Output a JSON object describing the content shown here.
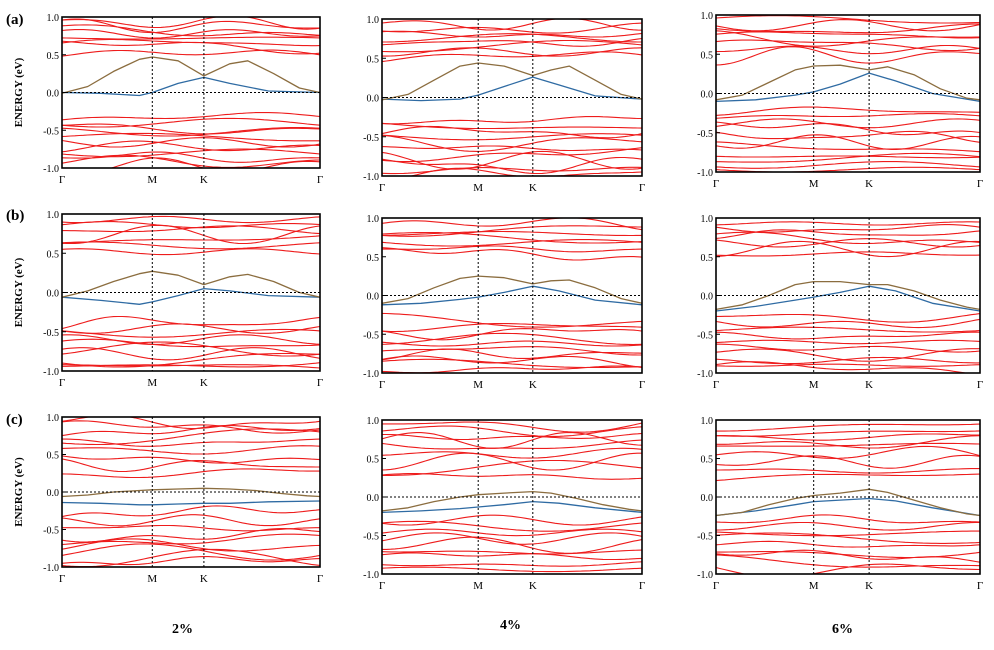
{
  "figure": {
    "row_labels": [
      "(a)",
      "(b)",
      "(c)"
    ],
    "column_labels": [
      "2%",
      "4%",
      "6%"
    ],
    "ylabel": "ENERGY (eV)",
    "yticks": [
      "1.0",
      "0.5",
      "0.0",
      "-0.5",
      "-1.0"
    ],
    "kpoints": [
      "Γ",
      "M",
      "K",
      "Γ"
    ],
    "colors": {
      "bands": "#ee1c1c",
      "upper_highlight": "#8b6d3f",
      "lower_highlight": "#2f6ba3",
      "frame": "#000000"
    }
  },
  "chart_data": [
    {
      "type": "line",
      "panel": "a-2%",
      "ylabel": "ENERGY (eV)",
      "ylim": [
        -1.0,
        1.0
      ],
      "kpoints": [
        "Γ",
        "M",
        "K",
        "Γ"
      ],
      "kpath": [
        0,
        0.35,
        0.55,
        1.0
      ],
      "highlight_upper": {
        "x": [
          0,
          0.1,
          0.2,
          0.3,
          0.35,
          0.45,
          0.55,
          0.65,
          0.72,
          0.82,
          0.92,
          1.0
        ],
        "y": [
          -0.01,
          0.08,
          0.28,
          0.44,
          0.47,
          0.42,
          0.22,
          0.38,
          0.42,
          0.25,
          0.06,
          0.0
        ]
      },
      "highlight_lower": {
        "x": [
          0,
          0.15,
          0.3,
          0.35,
          0.45,
          0.55,
          0.65,
          0.8,
          1.0
        ],
        "y": [
          0.0,
          -0.01,
          -0.04,
          0.0,
          0.12,
          0.2,
          0.12,
          0.02,
          0.0
        ]
      },
      "band_levels": [
        0.93,
        0.88,
        0.82,
        0.78,
        0.72,
        0.66,
        0.6,
        0.52,
        -0.34,
        -0.4,
        -0.46,
        -0.52,
        -0.6,
        -0.66,
        -0.72,
        -0.8,
        -0.86,
        -0.92,
        -0.97
      ]
    },
    {
      "type": "line",
      "panel": "a-4%",
      "ylabel": "ENERGY (eV)",
      "ylim": [
        -1.0,
        1.0
      ],
      "kpoints": [
        "Γ",
        "M",
        "K",
        "Γ"
      ],
      "kpath": [
        0,
        0.37,
        0.58,
        1.0
      ],
      "highlight_upper": {
        "x": [
          0,
          0.1,
          0.2,
          0.3,
          0.37,
          0.47,
          0.58,
          0.65,
          0.72,
          0.82,
          0.92,
          1.0
        ],
        "y": [
          -0.03,
          0.04,
          0.22,
          0.4,
          0.44,
          0.4,
          0.28,
          0.35,
          0.4,
          0.22,
          0.04,
          -0.02
        ]
      },
      "highlight_lower": {
        "x": [
          0,
          0.15,
          0.3,
          0.37,
          0.47,
          0.58,
          0.68,
          0.82,
          1.0
        ],
        "y": [
          -0.02,
          -0.04,
          -0.02,
          0.03,
          0.14,
          0.26,
          0.16,
          0.02,
          -0.02
        ]
      },
      "band_levels": [
        0.93,
        0.87,
        0.82,
        0.76,
        0.7,
        0.64,
        0.58,
        0.5,
        -0.28,
        -0.36,
        -0.44,
        -0.5,
        -0.58,
        -0.66,
        -0.72,
        -0.8,
        -0.86,
        -0.92,
        -0.97
      ]
    },
    {
      "type": "line",
      "panel": "a-6%",
      "ylabel": "ENERGY (eV)",
      "ylim": [
        -1.0,
        1.0
      ],
      "kpoints": [
        "Γ",
        "M",
        "K",
        "Γ"
      ],
      "kpath": [
        0,
        0.37,
        0.58,
        1.0
      ],
      "highlight_upper": {
        "x": [
          0,
          0.1,
          0.2,
          0.3,
          0.37,
          0.47,
          0.58,
          0.65,
          0.75,
          0.85,
          0.95,
          1.0
        ],
        "y": [
          -0.08,
          -0.02,
          0.14,
          0.3,
          0.35,
          0.36,
          0.3,
          0.34,
          0.24,
          0.06,
          -0.06,
          -0.08
        ]
      },
      "highlight_lower": {
        "x": [
          0,
          0.15,
          0.3,
          0.37,
          0.47,
          0.58,
          0.68,
          0.82,
          1.0
        ],
        "y": [
          -0.1,
          -0.08,
          -0.02,
          0.02,
          0.12,
          0.26,
          0.16,
          0.0,
          -0.1
        ]
      },
      "band_levels": [
        0.93,
        0.87,
        0.81,
        0.75,
        0.69,
        0.63,
        0.56,
        0.48,
        -0.22,
        -0.3,
        -0.38,
        -0.46,
        -0.54,
        -0.62,
        -0.7,
        -0.78,
        -0.85,
        -0.91,
        -0.97
      ]
    },
    {
      "type": "line",
      "panel": "b-2%",
      "ylabel": "ENERGY (eV)",
      "ylim": [
        -1.0,
        1.0
      ],
      "kpoints": [
        "Γ",
        "M",
        "K",
        "Γ"
      ],
      "kpath": [
        0,
        0.35,
        0.55,
        1.0
      ],
      "highlight_upper": {
        "x": [
          0,
          0.1,
          0.2,
          0.3,
          0.35,
          0.45,
          0.55,
          0.65,
          0.72,
          0.82,
          0.92,
          1.0
        ],
        "y": [
          -0.06,
          0.02,
          0.14,
          0.24,
          0.27,
          0.22,
          0.1,
          0.2,
          0.23,
          0.14,
          0.0,
          -0.06
        ]
      },
      "highlight_lower": {
        "x": [
          0,
          0.15,
          0.3,
          0.35,
          0.45,
          0.55,
          0.65,
          0.8,
          1.0
        ],
        "y": [
          -0.06,
          -0.1,
          -0.15,
          -0.12,
          -0.04,
          0.05,
          0.02,
          -0.04,
          -0.06
        ]
      },
      "band_levels": [
        0.93,
        0.86,
        0.8,
        0.74,
        0.68,
        0.6,
        0.52,
        -0.38,
        -0.46,
        -0.52,
        -0.6,
        -0.66,
        -0.72,
        -0.78,
        -0.84,
        -0.9,
        -0.95
      ]
    },
    {
      "type": "line",
      "panel": "b-4%",
      "ylabel": "ENERGY (eV)",
      "ylim": [
        -1.0,
        1.0
      ],
      "kpoints": [
        "Γ",
        "M",
        "K",
        "Γ"
      ],
      "kpath": [
        0,
        0.37,
        0.58,
        1.0
      ],
      "highlight_upper": {
        "x": [
          0,
          0.1,
          0.2,
          0.3,
          0.37,
          0.47,
          0.58,
          0.65,
          0.72,
          0.82,
          0.92,
          1.0
        ],
        "y": [
          -0.1,
          -0.04,
          0.1,
          0.22,
          0.25,
          0.23,
          0.15,
          0.19,
          0.2,
          0.1,
          -0.04,
          -0.1
        ]
      },
      "highlight_lower": {
        "x": [
          0,
          0.15,
          0.3,
          0.37,
          0.47,
          0.58,
          0.68,
          0.82,
          1.0
        ],
        "y": [
          -0.12,
          -0.1,
          -0.05,
          -0.02,
          0.04,
          0.12,
          0.06,
          -0.06,
          -0.12
        ]
      },
      "band_levels": [
        0.93,
        0.86,
        0.8,
        0.74,
        0.68,
        0.6,
        0.52,
        -0.32,
        -0.4,
        -0.48,
        -0.56,
        -0.62,
        -0.7,
        -0.76,
        -0.84,
        -0.9,
        -0.96
      ]
    },
    {
      "type": "line",
      "panel": "b-6%",
      "ylabel": "ENERGY (eV)",
      "ylim": [
        -1.0,
        1.0
      ],
      "kpoints": [
        "Γ",
        "M",
        "K",
        "Γ"
      ],
      "kpath": [
        0,
        0.37,
        0.58,
        1.0
      ],
      "highlight_upper": {
        "x": [
          0,
          0.1,
          0.2,
          0.3,
          0.37,
          0.47,
          0.58,
          0.65,
          0.75,
          0.85,
          0.95,
          1.0
        ],
        "y": [
          -0.18,
          -0.12,
          0.0,
          0.14,
          0.18,
          0.18,
          0.14,
          0.14,
          0.06,
          -0.06,
          -0.15,
          -0.18
        ]
      },
      "highlight_lower": {
        "x": [
          0,
          0.15,
          0.3,
          0.37,
          0.47,
          0.58,
          0.68,
          0.82,
          1.0
        ],
        "y": [
          -0.2,
          -0.14,
          -0.06,
          -0.02,
          0.04,
          0.12,
          0.06,
          -0.1,
          -0.2
        ]
      },
      "band_levels": [
        0.93,
        0.86,
        0.8,
        0.74,
        0.68,
        0.6,
        0.52,
        -0.28,
        -0.36,
        -0.44,
        -0.52,
        -0.6,
        -0.68,
        -0.76,
        -0.84,
        -0.9,
        -0.96
      ]
    },
    {
      "type": "line",
      "panel": "c-2%",
      "ylabel": "ENERGY (eV)",
      "ylim": [
        -1.0,
        1.0
      ],
      "kpoints": [
        "Γ",
        "M",
        "K",
        "Γ"
      ],
      "kpath": [
        0,
        0.35,
        0.55,
        1.0
      ],
      "highlight_upper": {
        "x": [
          0,
          0.1,
          0.2,
          0.3,
          0.35,
          0.45,
          0.55,
          0.65,
          0.75,
          0.85,
          0.95,
          1.0
        ],
        "y": [
          -0.06,
          -0.04,
          0.0,
          0.02,
          0.03,
          0.04,
          0.05,
          0.04,
          0.02,
          -0.02,
          -0.05,
          -0.06
        ]
      },
      "highlight_lower": {
        "x": [
          0,
          0.15,
          0.3,
          0.35,
          0.45,
          0.55,
          0.65,
          0.8,
          1.0
        ],
        "y": [
          -0.14,
          -0.15,
          -0.17,
          -0.17,
          -0.16,
          -0.15,
          -0.15,
          -0.13,
          -0.12
        ]
      },
      "band_levels": [
        0.93,
        0.86,
        0.8,
        0.74,
        0.66,
        0.56,
        0.46,
        0.36,
        0.26,
        -0.3,
        -0.38,
        -0.48,
        -0.56,
        -0.64,
        -0.72,
        -0.8,
        -0.88,
        -0.95
      ]
    },
    {
      "type": "line",
      "panel": "c-4%",
      "ylabel": "ENERGY (eV)",
      "ylim": [
        -1.0,
        1.0
      ],
      "kpoints": [
        "Γ",
        "M",
        "K",
        "Γ"
      ],
      "kpath": [
        0,
        0.37,
        0.58,
        1.0
      ],
      "highlight_upper": {
        "x": [
          0,
          0.1,
          0.2,
          0.3,
          0.37,
          0.47,
          0.58,
          0.65,
          0.75,
          0.85,
          0.95,
          1.0
        ],
        "y": [
          -0.18,
          -0.14,
          -0.06,
          0.0,
          0.03,
          0.05,
          0.07,
          0.05,
          -0.02,
          -0.1,
          -0.16,
          -0.18
        ]
      },
      "highlight_lower": {
        "x": [
          0,
          0.15,
          0.3,
          0.37,
          0.47,
          0.58,
          0.68,
          0.82,
          1.0
        ],
        "y": [
          -0.2,
          -0.18,
          -0.15,
          -0.13,
          -0.1,
          -0.06,
          -0.08,
          -0.14,
          -0.2
        ]
      },
      "band_levels": [
        0.93,
        0.86,
        0.8,
        0.74,
        0.66,
        0.56,
        0.46,
        0.36,
        0.26,
        -0.3,
        -0.38,
        -0.46,
        -0.54,
        -0.62,
        -0.7,
        -0.78,
        -0.86,
        -0.94
      ]
    },
    {
      "type": "line",
      "panel": "c-6%",
      "ylabel": "ENERGY (eV)",
      "ylim": [
        -1.0,
        1.0
      ],
      "kpoints": [
        "Γ",
        "M",
        "K",
        "Γ"
      ],
      "kpath": [
        0,
        0.37,
        0.58,
        1.0
      ],
      "highlight_upper": {
        "x": [
          0,
          0.1,
          0.2,
          0.3,
          0.37,
          0.47,
          0.58,
          0.65,
          0.75,
          0.85,
          0.95,
          1.0
        ],
        "y": [
          -0.24,
          -0.2,
          -0.1,
          -0.02,
          0.02,
          0.05,
          0.1,
          0.06,
          -0.04,
          -0.14,
          -0.22,
          -0.24
        ]
      },
      "highlight_lower": {
        "x": [
          0,
          0.15,
          0.3,
          0.37,
          0.47,
          0.58,
          0.68,
          0.82,
          1.0
        ],
        "y": [
          -0.24,
          -0.18,
          -0.1,
          -0.06,
          -0.04,
          -0.02,
          -0.05,
          -0.14,
          -0.24
        ]
      },
      "band_levels": [
        0.93,
        0.86,
        0.8,
        0.74,
        0.66,
        0.56,
        0.46,
        0.36,
        0.26,
        -0.3,
        -0.38,
        -0.46,
        -0.54,
        -0.62,
        -0.7,
        -0.78,
        -0.86,
        -0.94
      ]
    }
  ]
}
